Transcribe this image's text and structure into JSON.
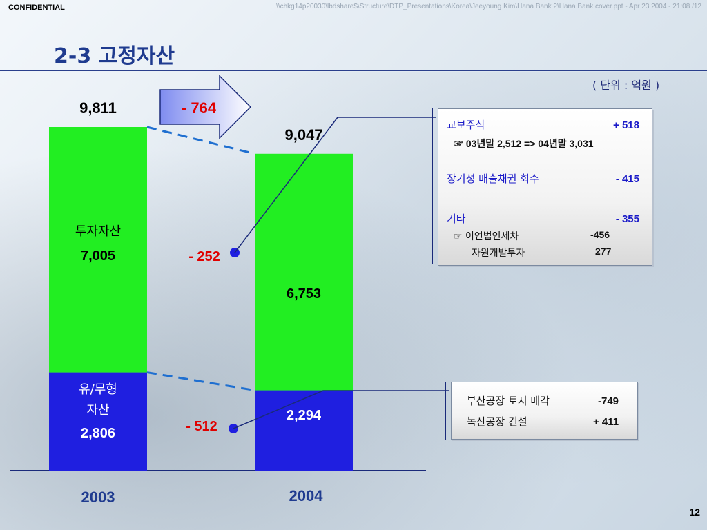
{
  "header": {
    "confidential": "CONFIDENTIAL",
    "file_path": "\\\\chkg14p20030\\lbdshare$\\Structure\\DTP_Presentations\\Korea\\Jeeyoung Kim\\Hana Bank 2\\Hana Bank cover.ppt - Apr 23 2004 - 21:08 /12",
    "title": "2-3 고정자산",
    "unit": "( 단위  :  억원 )"
  },
  "chart_data": {
    "type": "bar",
    "stacked": true,
    "categories": [
      "2003",
      "2004"
    ],
    "series": [
      {
        "name": "유/무형자산",
        "values": [
          2806,
          2294
        ],
        "color": "#1f1fe0"
      },
      {
        "name": "투자자산",
        "values": [
          7005,
          6753
        ],
        "color": "#22ee22"
      }
    ],
    "totals": [
      9811,
      9047
    ],
    "total_labels": [
      "9,811",
      "9,047"
    ],
    "segment_labels": {
      "bottom": [
        "유/무형",
        "자산",
        "2,806",
        "2,294"
      ],
      "top": [
        "투자자산",
        "7,005",
        "6,753"
      ]
    },
    "change_total": "- 764",
    "change_top": "- 252",
    "change_bottom": "- 512",
    "grid": false
  },
  "box_invest": {
    "rows": [
      {
        "label": "교보주식",
        "value": "+ 518"
      },
      {
        "sub": "☞ 03년말 2,512  =>  04년말 3,031"
      },
      {
        "label": "장기성 매출채권 회수",
        "value": "- 415"
      },
      {
        "label": "기타",
        "value": "- 355"
      },
      {
        "sub_label": "☞ 이연법인세차",
        "sub_value": "-456"
      },
      {
        "sub_label": "자원개발투자",
        "sub_value": "277"
      }
    ]
  },
  "box_tangible": {
    "rows": [
      {
        "label": "부산공장 토지 매각",
        "value": "-749"
      },
      {
        "label": "녹산공장 건설",
        "value": "+ 411"
      }
    ]
  },
  "footer": {
    "page": "12"
  },
  "colors": {
    "accent_red": "#e00000",
    "title_blue": "#1f3b8f",
    "connector": "#1a2a7a",
    "dash": "#1f6fd0"
  }
}
